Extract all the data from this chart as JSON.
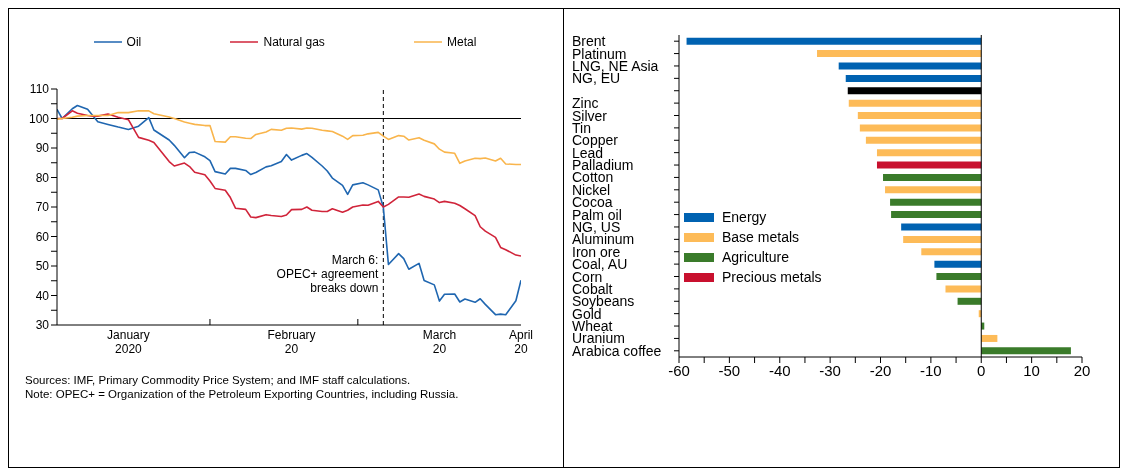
{
  "chart_data": [
    {
      "type": "line",
      "x": [
        "2020-01-02",
        "2020-01-03",
        "2020-01-05",
        "2020-01-06",
        "2020-01-08",
        "2020-01-09",
        "2020-01-10",
        "2020-01-12",
        "2020-01-14",
        "2020-01-16",
        "2020-01-18",
        "2020-01-20",
        "2020-01-21",
        "2020-01-24",
        "2020-01-25",
        "2020-01-27",
        "2020-01-28",
        "2020-01-29",
        "2020-01-31",
        "2020-02-01",
        "2020-02-02",
        "2020-02-04",
        "2020-02-05",
        "2020-02-06",
        "2020-02-08",
        "2020-02-09",
        "2020-02-10",
        "2020-02-12",
        "2020-02-13",
        "2020-02-15",
        "2020-02-16",
        "2020-02-17",
        "2020-02-19",
        "2020-02-20",
        "2020-02-21",
        "2020-02-23",
        "2020-02-24",
        "2020-02-25",
        "2020-02-27",
        "2020-02-28",
        "2020-02-29",
        "2020-03-02",
        "2020-03-03",
        "2020-03-05",
        "2020-03-06",
        "2020-03-07",
        "2020-03-09",
        "2020-03-10",
        "2020-03-11",
        "2020-03-13",
        "2020-03-14",
        "2020-03-16",
        "2020-03-17",
        "2020-03-18",
        "2020-03-20",
        "2020-03-21",
        "2020-03-22",
        "2020-03-24",
        "2020-03-25",
        "2020-03-26",
        "2020-03-28",
        "2020-03-29",
        "2020-03-30",
        "2020-04-01",
        "2020-04-02"
      ],
      "series": [
        {
          "name": "Oil",
          "color": "#1f66b0",
          "values": [
            103.1,
            100,
            103.3,
            104.4,
            103.1,
            101,
            98.9,
            98,
            97.1,
            96.3,
            97.4,
            100.3,
            96.1,
            92.7,
            90.9,
            86.7,
            88.5,
            88.6,
            87,
            85.7,
            82,
            81.2,
            83.1,
            83.1,
            82.4,
            81,
            81.7,
            83.6,
            84,
            85.4,
            87.8,
            85.9,
            87.5,
            88.1,
            86.8,
            83.9,
            82.2,
            79.8,
            77.3,
            74.3,
            77.5,
            78.2,
            77.5,
            75.8,
            69.9,
            50.5,
            54.2,
            52.5,
            48.9,
            50.9,
            45.1,
            43.6,
            38.1,
            40.4,
            40.5,
            37.8,
            38.8,
            37.7,
            38.9,
            37,
            33.5,
            33.7,
            33.5,
            38.2,
            45.2
          ]
        },
        {
          "name": "Natural gas",
          "color": "#d0243a",
          "values": [
            100,
            100,
            102.6,
            101.8,
            101,
            100.8,
            100.8,
            101.5,
            100.4,
            99.6,
            93.6,
            92.6,
            91.9,
            85.4,
            83.9,
            84.9,
            83.7,
            81.8,
            80.9,
            78.8,
            76.3,
            75.7,
            73.2,
            69.6,
            69.2,
            66.6,
            66.4,
            67.4,
            67.1,
            66.8,
            67.3,
            69.1,
            69.2,
            70,
            68.9,
            68.5,
            68.5,
            69.4,
            68.2,
            68.9,
            70,
            70.7,
            70.6,
            71.9,
            70,
            70.9,
            73.4,
            73.4,
            73.3,
            74.4,
            73.6,
            72.7,
            71.5,
            71.9,
            71.3,
            70.5,
            69.4,
            67.1,
            63.3,
            61.8,
            59.7,
            56.3,
            55.5,
            53.7,
            53.4
          ]
        },
        {
          "name": "Metal",
          "color": "#f9b54c",
          "values": [
            99.8,
            100,
            100.4,
            100.8,
            101,
            101,
            101,
            101,
            102,
            102,
            102.6,
            102.6,
            101.6,
            100.5,
            100,
            98.8,
            98.4,
            98,
            97.6,
            97.6,
            92.2,
            92,
            93.8,
            93.8,
            93.3,
            93.2,
            94.6,
            95.4,
            96.3,
            96,
            96.7,
            96.8,
            96.4,
            96.8,
            96.7,
            96,
            95.8,
            95.6,
            94,
            92.9,
            94.2,
            94.3,
            94.8,
            95.3,
            94,
            92.9,
            94.2,
            94,
            92.7,
            93.5,
            92.6,
            91.4,
            89.6,
            88.6,
            88.2,
            84.8,
            85.6,
            86.5,
            86.4,
            86.6,
            85.6,
            86.5,
            84.6,
            84.4,
            84.4
          ]
        }
      ],
      "xlim": [
        "2020-01-02",
        "2020-04-02"
      ],
      "xticks": [
        {
          "value": "2020-01-16",
          "label": "January\n2020"
        },
        {
          "value": "2020-02-01",
          "label": null
        },
        {
          "value": "2020-02-17",
          "label": "February\n20"
        },
        {
          "value": "2020-03-01",
          "label": null
        },
        {
          "value": "2020-03-17",
          "label": "March\n20"
        },
        {
          "value": "2020-04-02",
          "label": "April\n20"
        }
      ],
      "ylim": [
        30,
        110
      ],
      "yticks": [
        30,
        {
          "value": 35,
          "label": null
        },
        40,
        {
          "value": 45,
          "label": null
        },
        50,
        {
          "value": 55,
          "label": null
        },
        60,
        {
          "value": 65,
          "label": null
        },
        70,
        {
          "value": 75,
          "label": null
        },
        80,
        {
          "value": 85,
          "label": null
        },
        90,
        {
          "value": 95,
          "label": null
        },
        100,
        {
          "value": 105,
          "label": null
        },
        110
      ],
      "ref_lines": [
        {
          "axis": "y",
          "value": 100,
          "color": "#000000",
          "line_style": "solid"
        },
        {
          "axis": "x",
          "value": "2020-03-06",
          "label": "March 6:\nOPEC+ agreement\nbreaks down",
          "color": "#000000",
          "line_style": "dashed"
        }
      ],
      "grid": false,
      "legend": "top",
      "marker": "none",
      "line_style": "solid",
      "annotations": [
        "Sources: IMF, Primary Commodity Price System; and IMF staff calculations.",
        "Note: OPEC+ = Organization of the Petroleum Exporting Countries, including Russia."
      ]
    },
    {
      "type": "bar",
      "orientation": "horizontal",
      "stacked": true,
      "categories": [
        "Brent",
        "Platinum",
        "LNG, NE Asia",
        "NG, EU",
        null,
        "Zinc",
        "Silver",
        "Tin",
        "Copper",
        "Lead",
        "Palladium",
        "Cotton",
        "Nickel",
        "Cocoa",
        "Palm oil",
        "NG, US",
        "Aluminum",
        "Iron ore",
        "Coal, AU",
        "Corn",
        "Cobalt",
        "Soybeans",
        "Gold",
        "Wheat",
        "Uranium",
        "Arabica coffee"
      ],
      "series": [
        {
          "name": "Energy",
          "color": "#0062b1",
          "values": [
            -58.5,
            null,
            -28.3,
            -26.9,
            null,
            null,
            null,
            null,
            null,
            null,
            null,
            null,
            null,
            null,
            null,
            -15.9,
            null,
            null,
            -9.3,
            null,
            null,
            null,
            null,
            null,
            null,
            null
          ]
        },
        {
          "name": "Base metals",
          "color": "#fdbb58",
          "values": [
            null,
            -32.6,
            null,
            null,
            null,
            -26.3,
            -24.5,
            -24.1,
            -22.9,
            -20.7,
            null,
            null,
            -19.1,
            null,
            null,
            null,
            -15.5,
            -11.9,
            null,
            null,
            -7.1,
            null,
            -0.5,
            null,
            3.2,
            null
          ]
        },
        {
          "name": "Agriculture",
          "color": "#3a7b2a",
          "values": [
            null,
            null,
            null,
            null,
            null,
            null,
            null,
            null,
            null,
            null,
            null,
            -19.5,
            null,
            -18.1,
            -17.9,
            null,
            null,
            null,
            null,
            -8.9,
            null,
            -4.7,
            null,
            0.6,
            null,
            17.8
          ]
        },
        {
          "name": "Precious metals",
          "color": "#c8102e",
          "values": [
            null,
            null,
            null,
            null,
            null,
            null,
            null,
            null,
            null,
            null,
            -20.7,
            null,
            null,
            null,
            null,
            null,
            null,
            null,
            null,
            null,
            null,
            null,
            null,
            null,
            null,
            null
          ]
        },
        {
          "color": "#000000",
          "values": [
            null,
            null,
            null,
            null,
            -26.5,
            null,
            null,
            null,
            null,
            null,
            null,
            null,
            null,
            null,
            null,
            null,
            null,
            null,
            null,
            null,
            null,
            null,
            null,
            null,
            null,
            null
          ]
        }
      ],
      "xlim": [
        -60,
        20
      ],
      "xticks": [
        -60,
        {
          "value": -55,
          "label": null
        },
        -50,
        {
          "value": -45,
          "label": null
        },
        -40,
        {
          "value": -35,
          "label": null
        },
        -30,
        {
          "value": -25,
          "label": null
        },
        -20,
        {
          "value": -15,
          "label": null
        },
        -10,
        {
          "value": -5,
          "label": null
        },
        0,
        {
          "value": 5,
          "label": null
        },
        10,
        {
          "value": 15,
          "label": null
        },
        20
      ],
      "ref_lines": [
        {
          "axis": "x",
          "value": 0,
          "color": "#000000",
          "line_style": "solid"
        }
      ],
      "grid": false,
      "legend": "left"
    }
  ]
}
